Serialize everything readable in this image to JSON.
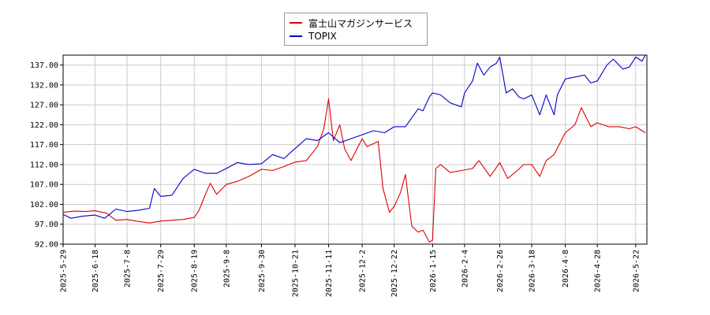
{
  "chart_data": {
    "type": "line",
    "legend": {
      "placement": "top-center"
    },
    "grid": true,
    "ylim": [
      92.0,
      139.5
    ],
    "xlim": [
      "2025-05-29",
      "2026-05-29"
    ],
    "y_ticks": [
      "92.00",
      "97.00",
      "102.00",
      "107.00",
      "112.00",
      "117.00",
      "122.00",
      "127.00",
      "132.00",
      "137.00"
    ],
    "x_ticks": [
      "2025-5-29",
      "2025-6-18",
      "2025-7-8",
      "2025-7-29",
      "2025-8-19",
      "2025-9-8",
      "2025-9-30",
      "2025-10-21",
      "2025-11-11",
      "2025-12-2",
      "2025-12-22",
      "2026-1-15",
      "2026-2-4",
      "2026-2-26",
      "2026-3-18",
      "2026-4-8",
      "2026-4-28",
      "2026-5-22"
    ],
    "series": [
      {
        "name": "富士山マガジンサービス",
        "color": "#dd0000",
        "points": [
          [
            "2025-05-29",
            100.0
          ],
          [
            "2025-06-05",
            100.3
          ],
          [
            "2025-06-12",
            100.2
          ],
          [
            "2025-06-18",
            100.4
          ],
          [
            "2025-06-25",
            99.8
          ],
          [
            "2025-07-01",
            98.0
          ],
          [
            "2025-07-08",
            98.2
          ],
          [
            "2025-07-15",
            97.7
          ],
          [
            "2025-07-22",
            97.3
          ],
          [
            "2025-07-29",
            97.8
          ],
          [
            "2025-08-05",
            98.0
          ],
          [
            "2025-08-12",
            98.2
          ],
          [
            "2025-08-19",
            98.7
          ],
          [
            "2025-08-22",
            100.5
          ],
          [
            "2025-08-26",
            104.5
          ],
          [
            "2025-08-29",
            107.3
          ],
          [
            "2025-09-02",
            104.5
          ],
          [
            "2025-09-08",
            107.0
          ],
          [
            "2025-09-15",
            107.8
          ],
          [
            "2025-09-22",
            109.0
          ],
          [
            "2025-09-30",
            110.8
          ],
          [
            "2025-10-07",
            110.5
          ],
          [
            "2025-10-14",
            111.5
          ],
          [
            "2025-10-21",
            112.6
          ],
          [
            "2025-10-28",
            113.0
          ],
          [
            "2025-11-04",
            116.5
          ],
          [
            "2025-11-08",
            121.0
          ],
          [
            "2025-11-11",
            128.5
          ],
          [
            "2025-11-14",
            118.0
          ],
          [
            "2025-11-18",
            122.0
          ],
          [
            "2025-11-21",
            116.0
          ],
          [
            "2025-11-25",
            113.0
          ],
          [
            "2025-12-02",
            118.5
          ],
          [
            "2025-12-05",
            116.5
          ],
          [
            "2025-12-12",
            117.8
          ],
          [
            "2025-12-15",
            106.0
          ],
          [
            "2025-12-19",
            100.0
          ],
          [
            "2025-12-22",
            101.5
          ],
          [
            "2025-12-26",
            105.0
          ],
          [
            "2025-12-29",
            109.5
          ],
          [
            "2026-01-02",
            96.5
          ],
          [
            "2026-01-06",
            95.0
          ],
          [
            "2026-01-09",
            95.5
          ],
          [
            "2026-01-13",
            92.5
          ],
          [
            "2026-01-15",
            93.0
          ],
          [
            "2026-01-17",
            111.0
          ],
          [
            "2026-01-20",
            112.0
          ],
          [
            "2026-01-26",
            110.0
          ],
          [
            "2026-02-02",
            110.5
          ],
          [
            "2026-02-09",
            111.0
          ],
          [
            "2026-02-13",
            113.0
          ],
          [
            "2026-02-20",
            109.0
          ],
          [
            "2026-02-26",
            112.5
          ],
          [
            "2026-03-03",
            108.5
          ],
          [
            "2026-03-09",
            110.5
          ],
          [
            "2026-03-13",
            112.0
          ],
          [
            "2026-03-18",
            112.0
          ],
          [
            "2026-03-23",
            109.0
          ],
          [
            "2026-03-27",
            113.0
          ],
          [
            "2026-04-01",
            114.5
          ],
          [
            "2026-04-08",
            120.0
          ],
          [
            "2026-04-14",
            122.0
          ],
          [
            "2026-04-18",
            126.3
          ],
          [
            "2026-04-24",
            121.5
          ],
          [
            "2026-04-28",
            122.5
          ],
          [
            "2026-05-05",
            121.5
          ],
          [
            "2026-05-12",
            121.5
          ],
          [
            "2026-05-18",
            121.0
          ],
          [
            "2026-05-22",
            121.5
          ],
          [
            "2026-05-26",
            120.5
          ],
          [
            "2026-05-28",
            120.0
          ]
        ]
      },
      {
        "name": "TOPIX",
        "color": "#0000cc",
        "points": [
          [
            "2025-05-29",
            99.5
          ],
          [
            "2025-06-03",
            98.5
          ],
          [
            "2025-06-10",
            99.0
          ],
          [
            "2025-06-18",
            99.3
          ],
          [
            "2025-06-24",
            98.5
          ],
          [
            "2025-07-01",
            100.8
          ],
          [
            "2025-07-08",
            100.2
          ],
          [
            "2025-07-15",
            100.5
          ],
          [
            "2025-07-22",
            101.0
          ],
          [
            "2025-07-25",
            106.0
          ],
          [
            "2025-07-29",
            104.0
          ],
          [
            "2025-08-05",
            104.3
          ],
          [
            "2025-08-12",
            108.5
          ],
          [
            "2025-08-19",
            110.8
          ],
          [
            "2025-08-26",
            109.8
          ],
          [
            "2025-09-02",
            109.8
          ],
          [
            "2025-09-08",
            111.0
          ],
          [
            "2025-09-15",
            112.5
          ],
          [
            "2025-09-22",
            112.0
          ],
          [
            "2025-09-30",
            112.2
          ],
          [
            "2025-10-07",
            114.5
          ],
          [
            "2025-10-14",
            113.5
          ],
          [
            "2025-10-21",
            116.0
          ],
          [
            "2025-10-28",
            118.5
          ],
          [
            "2025-11-04",
            118.0
          ],
          [
            "2025-11-11",
            120.0
          ],
          [
            "2025-11-18",
            117.5
          ],
          [
            "2025-11-25",
            118.5
          ],
          [
            "2025-12-02",
            119.5
          ],
          [
            "2025-12-09",
            120.5
          ],
          [
            "2025-12-16",
            120.0
          ],
          [
            "2025-12-22",
            121.5
          ],
          [
            "2025-12-29",
            121.5
          ],
          [
            "2026-01-06",
            126.0
          ],
          [
            "2026-01-09",
            125.5
          ],
          [
            "2026-01-13",
            129.0
          ],
          [
            "2026-01-15",
            130.0
          ],
          [
            "2026-01-20",
            129.5
          ],
          [
            "2026-01-26",
            127.5
          ],
          [
            "2026-02-02",
            126.5
          ],
          [
            "2026-02-04",
            130.0
          ],
          [
            "2026-02-09",
            133.0
          ],
          [
            "2026-02-12",
            137.5
          ],
          [
            "2026-02-16",
            134.5
          ],
          [
            "2026-02-20",
            136.5
          ],
          [
            "2026-02-24",
            137.5
          ],
          [
            "2026-02-26",
            139.0
          ],
          [
            "2026-03-02",
            130.0
          ],
          [
            "2026-03-06",
            131.0
          ],
          [
            "2026-03-10",
            129.0
          ],
          [
            "2026-03-13",
            128.5
          ],
          [
            "2026-03-18",
            129.5
          ],
          [
            "2026-03-23",
            124.5
          ],
          [
            "2026-03-27",
            129.5
          ],
          [
            "2026-04-01",
            124.5
          ],
          [
            "2026-04-03",
            129.5
          ],
          [
            "2026-04-08",
            133.5
          ],
          [
            "2026-04-14",
            134.0
          ],
          [
            "2026-04-20",
            134.5
          ],
          [
            "2026-04-24",
            132.5
          ],
          [
            "2026-04-28",
            133.0
          ],
          [
            "2026-05-04",
            137.0
          ],
          [
            "2026-05-08",
            138.5
          ],
          [
            "2026-05-14",
            136.0
          ],
          [
            "2026-05-18",
            136.5
          ],
          [
            "2026-05-22",
            139.0
          ],
          [
            "2026-05-26",
            138.0
          ],
          [
            "2026-05-28",
            139.5
          ]
        ]
      }
    ]
  }
}
